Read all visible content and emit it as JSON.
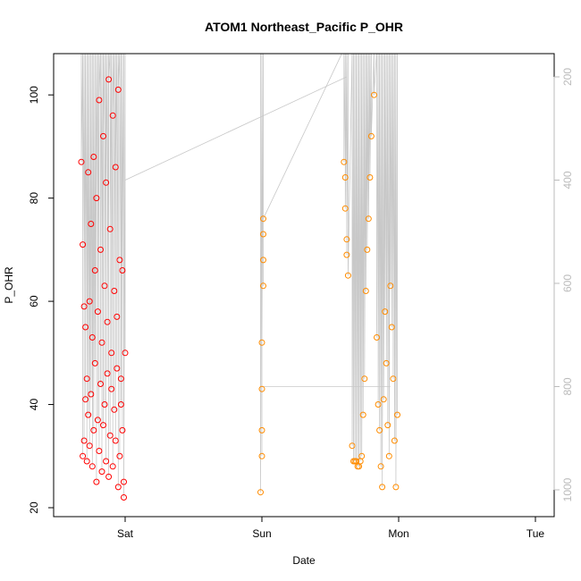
{
  "chart_data": {
    "type": "scatter",
    "title": "ATOM1 Northeast_Pacific P_OHR",
    "xlabel": "Date",
    "ylabel": "P_OHR",
    "x_ticks": [
      "Sat",
      "Sun",
      "Mon",
      "Tue"
    ],
    "ylim": [
      20,
      108
    ],
    "y_ticks": [
      20,
      40,
      60,
      80,
      100
    ],
    "right_axis": {
      "label": "",
      "ticks": [
        200,
        400,
        600,
        800,
        1000
      ],
      "color": "#bbbbbb",
      "reversed": true
    },
    "grid": false,
    "series": [
      {
        "name": "",
        "color": "#ff0000",
        "x": [
          -0.32,
          -0.31,
          -0.31,
          -0.3,
          -0.3,
          -0.29,
          -0.29,
          -0.28,
          -0.28,
          -0.27,
          -0.27,
          -0.26,
          -0.26,
          -0.25,
          -0.25,
          -0.24,
          -0.24,
          -0.23,
          -0.23,
          -0.22,
          -0.22,
          -0.21,
          -0.21,
          -0.2,
          -0.2,
          -0.19,
          -0.19,
          -0.18,
          -0.18,
          -0.17,
          -0.17,
          -0.16,
          -0.16,
          -0.15,
          -0.15,
          -0.14,
          -0.14,
          -0.13,
          -0.13,
          -0.12,
          -0.12,
          -0.11,
          -0.11,
          -0.1,
          -0.1,
          -0.09,
          -0.09,
          -0.08,
          -0.08,
          -0.07,
          -0.07,
          -0.06,
          -0.06,
          -0.05,
          -0.05,
          -0.04,
          -0.04,
          -0.03,
          -0.03,
          -0.02,
          -0.02,
          -0.01,
          -0.01,
          0.0
        ],
        "y": [
          87,
          30,
          71,
          33,
          59,
          41,
          55,
          29,
          45,
          85,
          38,
          60,
          32,
          75,
          42,
          53,
          28,
          88,
          35,
          66,
          48,
          25,
          80,
          37,
          58,
          31,
          99,
          44,
          70,
          27,
          52,
          36,
          92,
          40,
          63,
          29,
          83,
          46,
          56,
          26,
          103,
          34,
          74,
          43,
          50,
          28,
          96,
          39,
          62,
          33,
          86,
          47,
          57,
          24,
          101,
          30,
          68,
          45,
          40,
          35,
          66,
          25,
          22,
          50
        ]
      },
      {
        "name": "",
        "color": "#ff8c00",
        "x": [
          0.99,
          1.0,
          1.0,
          1.0,
          1.0,
          1.01,
          1.01,
          1.01,
          1.01,
          1.6,
          1.61,
          1.61,
          1.62,
          1.62,
          1.63,
          1.66,
          1.67,
          1.68,
          1.69,
          1.7,
          1.71,
          1.72,
          1.73,
          1.74,
          1.75,
          1.76,
          1.77,
          1.78,
          1.79,
          1.8,
          1.82,
          1.84,
          1.85,
          1.86,
          1.87,
          1.88,
          1.89,
          1.9,
          1.91,
          1.92,
          1.93,
          1.94,
          1.95,
          1.96,
          1.97,
          1.98,
          1.99
        ],
        "y": [
          23,
          30,
          35,
          43,
          52,
          63,
          68,
          73,
          76,
          87,
          84,
          78,
          72,
          69,
          65,
          32,
          29,
          29,
          29,
          28,
          28,
          29,
          30,
          38,
          45,
          62,
          70,
          76,
          84,
          92,
          100,
          53,
          40,
          35,
          28,
          24,
          41,
          58,
          48,
          36,
          30,
          63,
          55,
          45,
          33,
          24,
          38
        ]
      }
    ]
  }
}
